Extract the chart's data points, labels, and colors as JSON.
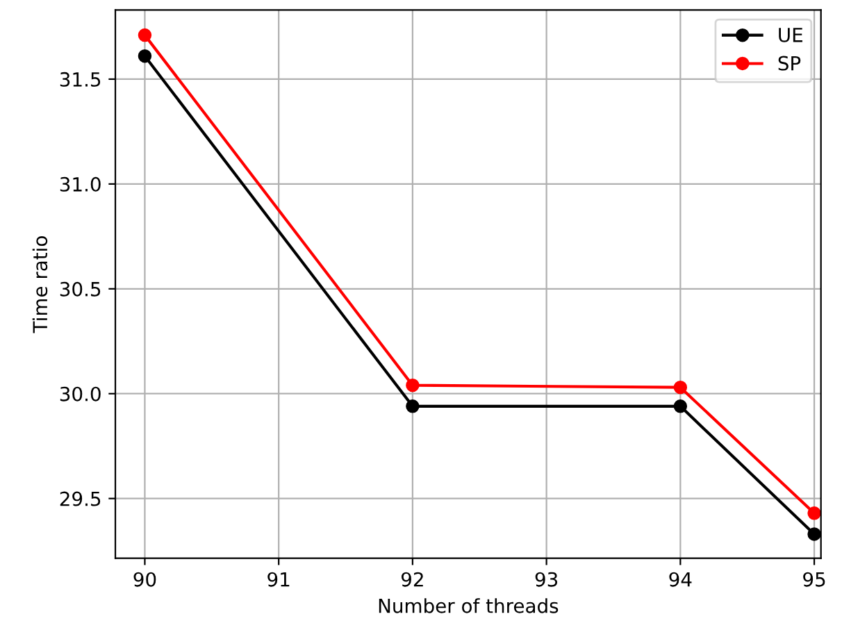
{
  "chart_data": {
    "type": "line",
    "xlabel": "Number of threads",
    "ylabel": "Time ratio",
    "x": [
      90,
      92,
      94,
      95
    ],
    "series": [
      {
        "name": "UE",
        "color": "#000000",
        "values": [
          31.61,
          29.94,
          29.94,
          29.33
        ]
      },
      {
        "name": "SP",
        "color": "#ff0000",
        "values": [
          31.71,
          30.04,
          30.03,
          29.43
        ]
      }
    ],
    "xlim": [
      89.78,
      95.05
    ],
    "xticks": [
      90,
      91,
      92,
      93,
      94,
      95
    ],
    "ylim": [
      29.215,
      31.83
    ],
    "yticks": [
      29.5,
      {
        "value": 30,
        "label": "30.0"
      },
      30.5,
      {
        "value": 31,
        "label": "31.0"
      },
      31.5
    ],
    "grid": true,
    "legend": "top right",
    "marker": "circle",
    "line_style": "solid"
  }
}
